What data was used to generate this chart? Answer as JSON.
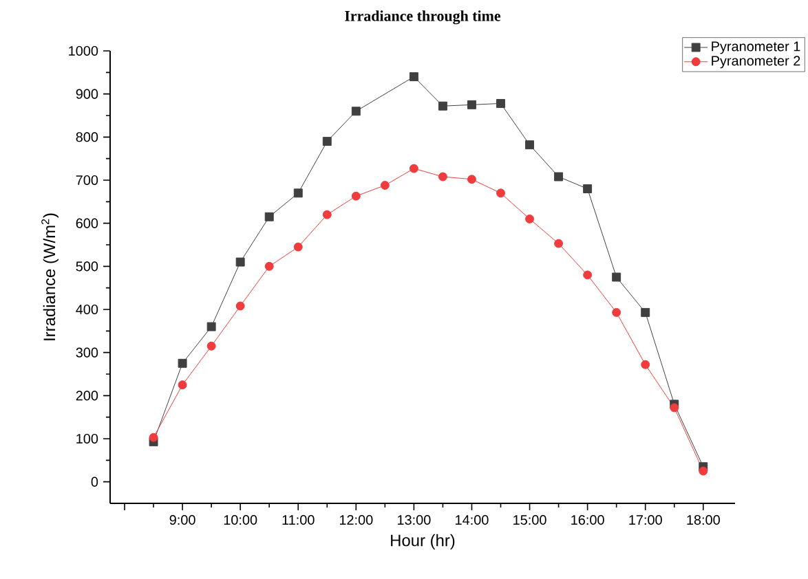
{
  "chart_data": {
    "type": "line",
    "title": "Irradiance through time",
    "xlabel": "Hour (hr)",
    "ylabel": "Irradiance (W/m$^{2}$)",
    "xlim": [
      7.75,
      18.55
    ],
    "ylim": [
      -50,
      1000
    ],
    "xticks": [
      {
        "value": 8,
        "label": null
      },
      {
        "value": 9,
        "label": "9:00"
      },
      {
        "value": 10,
        "label": "10:00"
      },
      {
        "value": 11,
        "label": "11:00"
      },
      {
        "value": 12,
        "label": "12:00"
      },
      {
        "value": 13,
        "label": "13:00"
      },
      {
        "value": 14,
        "label": "14:00"
      },
      {
        "value": 15,
        "label": "15:00"
      },
      {
        "value": 16,
        "label": "16:00"
      },
      {
        "value": 17,
        "label": "17:00"
      },
      {
        "value": 18,
        "label": "18:00"
      }
    ],
    "yticks": [
      0,
      100,
      200,
      300,
      400,
      500,
      600,
      700,
      800,
      900,
      1000
    ],
    "grid": false,
    "legend": "top right",
    "series": [
      {
        "name": "Pyranometer 1",
        "color": "#404040",
        "marker": "square",
        "x": [
          8.5,
          9,
          9.5,
          10,
          10.5,
          11,
          11.5,
          12,
          13,
          13.5,
          14,
          14.5,
          15,
          15.5,
          16,
          16.5,
          17,
          17.5,
          18
        ],
        "values": [
          93,
          275,
          360,
          510,
          615,
          670,
          790,
          860,
          940,
          872,
          875,
          878,
          782,
          708,
          680,
          475,
          393,
          180,
          35
        ]
      },
      {
        "name": "Pyranometer 2",
        "color": "#f03c3c",
        "marker": "circle",
        "x": [
          8.5,
          9,
          9.5,
          10,
          10.5,
          11,
          11.5,
          12,
          12.5,
          13,
          13.5,
          14,
          14.5,
          15,
          15.5,
          16,
          16.5,
          17,
          17.5,
          18
        ],
        "values": [
          103,
          225,
          315,
          408,
          500,
          545,
          620,
          663,
          688,
          727,
          708,
          702,
          670,
          610,
          553,
          480,
          393,
          272,
          172,
          25
        ]
      }
    ]
  }
}
